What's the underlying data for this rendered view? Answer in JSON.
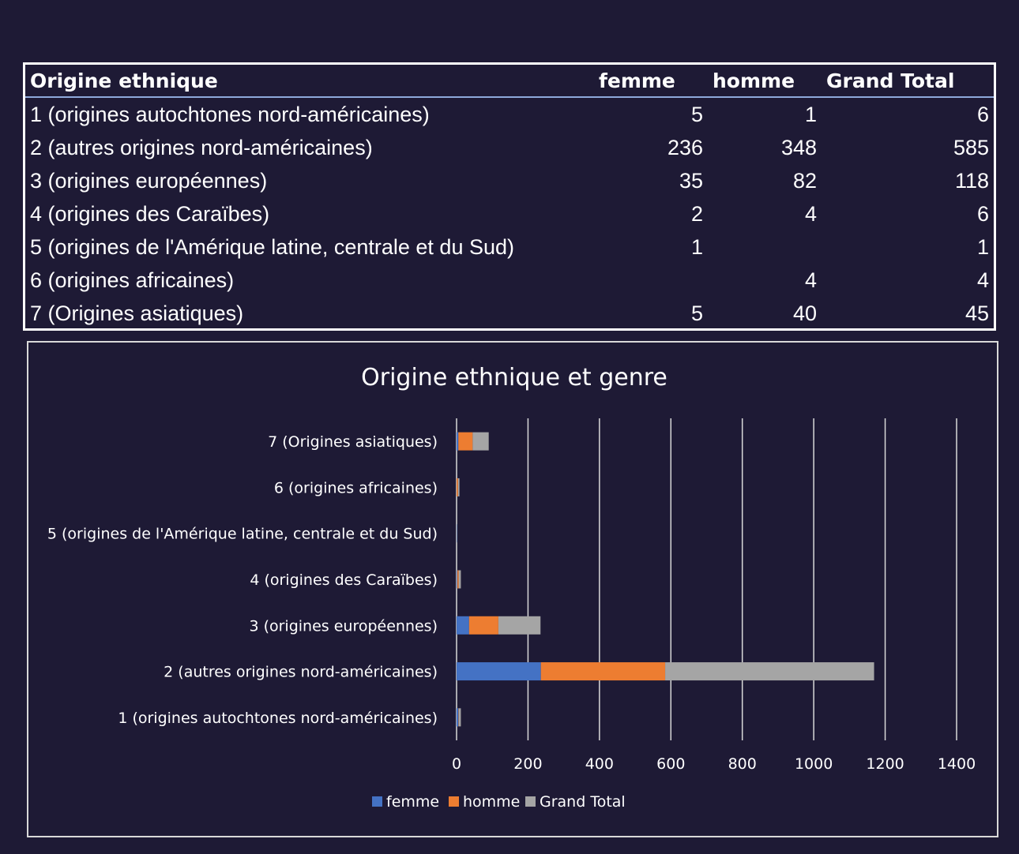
{
  "table": {
    "headers": [
      "Origine ethnique",
      "femme",
      "homme",
      "Grand Total"
    ],
    "rows": [
      [
        "1 (origines autochtones nord-américaines)",
        "5",
        "1",
        "6"
      ],
      [
        "2 (autres origines nord-américaines)",
        "236",
        "348",
        "585"
      ],
      [
        "3 (origines européennes)",
        "35",
        "82",
        "118"
      ],
      [
        "4 (origines des Caraïbes)",
        "2",
        "4",
        "6"
      ],
      [
        "5 (origines de l'Amérique latine, centrale et du Sud)",
        "1",
        "",
        "1"
      ],
      [
        "6 (origines africaines)",
        "",
        "4",
        "4"
      ],
      [
        "7 (Origines asiatiques)",
        "5",
        "40",
        "45"
      ]
    ]
  },
  "chart_data": {
    "type": "bar",
    "orientation": "horizontal",
    "stacked": true,
    "title": "Origine ethnique et genre",
    "categories": [
      "1 (origines autochtones nord-américaines)",
      "2 (autres origines nord-américaines)",
      "3 (origines européennes)",
      "4 (origines des Caraïbes)",
      "5 (origines de l'Amérique latine, centrale et du Sud)",
      "6 (origines africaines)",
      "7 (Origines asiatiques)"
    ],
    "series": [
      {
        "name": "femme",
        "color": "#4472c4",
        "values": [
          5,
          236,
          35,
          2,
          1,
          0,
          5
        ]
      },
      {
        "name": "homme",
        "color": "#ed7d31",
        "values": [
          1,
          348,
          82,
          4,
          0,
          4,
          40
        ]
      },
      {
        "name": "Grand Total",
        "color": "#a5a5a5",
        "values": [
          6,
          585,
          118,
          6,
          1,
          4,
          45
        ]
      }
    ],
    "xlim": [
      0,
      1400
    ],
    "xticks": [
      "0",
      "200",
      "400",
      "600",
      "800",
      "1000",
      "1200",
      "1400"
    ],
    "grid": "vertical",
    "legend": "bottom"
  }
}
